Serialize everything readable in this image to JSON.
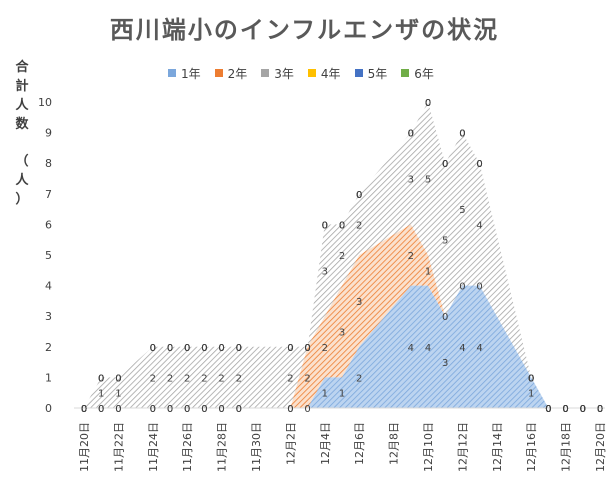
{
  "chart_data": {
    "type": "area",
    "title": "西川端小のインフルエンザの状況",
    "ylabel": "合計人数（人）",
    "ylabel_chars": [
      "合",
      "計",
      "人",
      "数",
      "（",
      "人",
      "）"
    ],
    "ylim": [
      0,
      10
    ],
    "yticks": [
      0,
      1,
      2,
      3,
      4,
      5,
      6,
      7,
      8,
      9,
      10
    ],
    "stacked": true,
    "grid": false,
    "legend_position": "top",
    "x": [
      "11月20日",
      "11月21日",
      "11月22日",
      "11月24日",
      "11月25日",
      "11月26日",
      "11月27日",
      "11月28日",
      "11月29日",
      "12月2日",
      "12月3日",
      "12月4日",
      "12月5日",
      "12月6日",
      "12月9日",
      "12月10日",
      "12月11日",
      "12月12日",
      "12月13日",
      "12月16日",
      "12月17日",
      "12月18日",
      "12月19日",
      "12月20日"
    ],
    "x_tick_labels": [
      "11月20日",
      "11月22日",
      "11月24日",
      "11月26日",
      "11月28日",
      "11月30日",
      "12月2日",
      "12月4日",
      "12月6日",
      "12月8日",
      "12月10日",
      "12月12日",
      "12月14日",
      "12月16日",
      "12月18日",
      "12月20日"
    ],
    "series": [
      {
        "name": "1年",
        "color": "#7ba7dc",
        "values": [
          0,
          0,
          0,
          0,
          0,
          0,
          0,
          0,
          0,
          0,
          0,
          1,
          1,
          2,
          4,
          4,
          3,
          4,
          4,
          1,
          0,
          0,
          0,
          0
        ]
      },
      {
        "name": "2年",
        "color": "#ed7d31",
        "values": [
          0,
          0,
          0,
          0,
          0,
          0,
          0,
          0,
          0,
          0,
          2,
          2,
          3,
          3,
          2,
          1,
          0,
          0,
          0,
          0,
          0,
          0,
          0,
          0
        ]
      },
      {
        "name": "3年",
        "color": "#a5a5a5",
        "values": [
          0,
          1,
          1,
          2,
          2,
          2,
          2,
          2,
          2,
          2,
          0,
          3,
          2,
          2,
          3,
          5,
          5,
          5,
          4,
          0,
          0,
          0,
          0,
          0
        ]
      },
      {
        "name": "4年",
        "color": "#ffc000",
        "values": [
          0,
          0,
          0,
          0,
          0,
          0,
          0,
          0,
          0,
          0,
          0,
          0,
          0,
          0,
          0,
          0,
          0,
          0,
          0,
          0,
          0,
          0,
          0,
          0
        ]
      },
      {
        "name": "5年",
        "color": "#4472c4",
        "values": [
          0,
          0,
          0,
          0,
          0,
          0,
          0,
          0,
          0,
          0,
          0,
          0,
          0,
          0,
          0,
          0,
          0,
          0,
          0,
          0,
          0,
          0,
          0,
          0
        ]
      },
      {
        "name": "6年",
        "color": "#70ad47",
        "values": [
          0,
          0,
          0,
          0,
          0,
          0,
          0,
          0,
          0,
          0,
          0,
          0,
          0,
          0,
          0,
          0,
          0,
          0,
          0,
          0,
          0,
          0,
          0,
          0
        ]
      }
    ]
  }
}
